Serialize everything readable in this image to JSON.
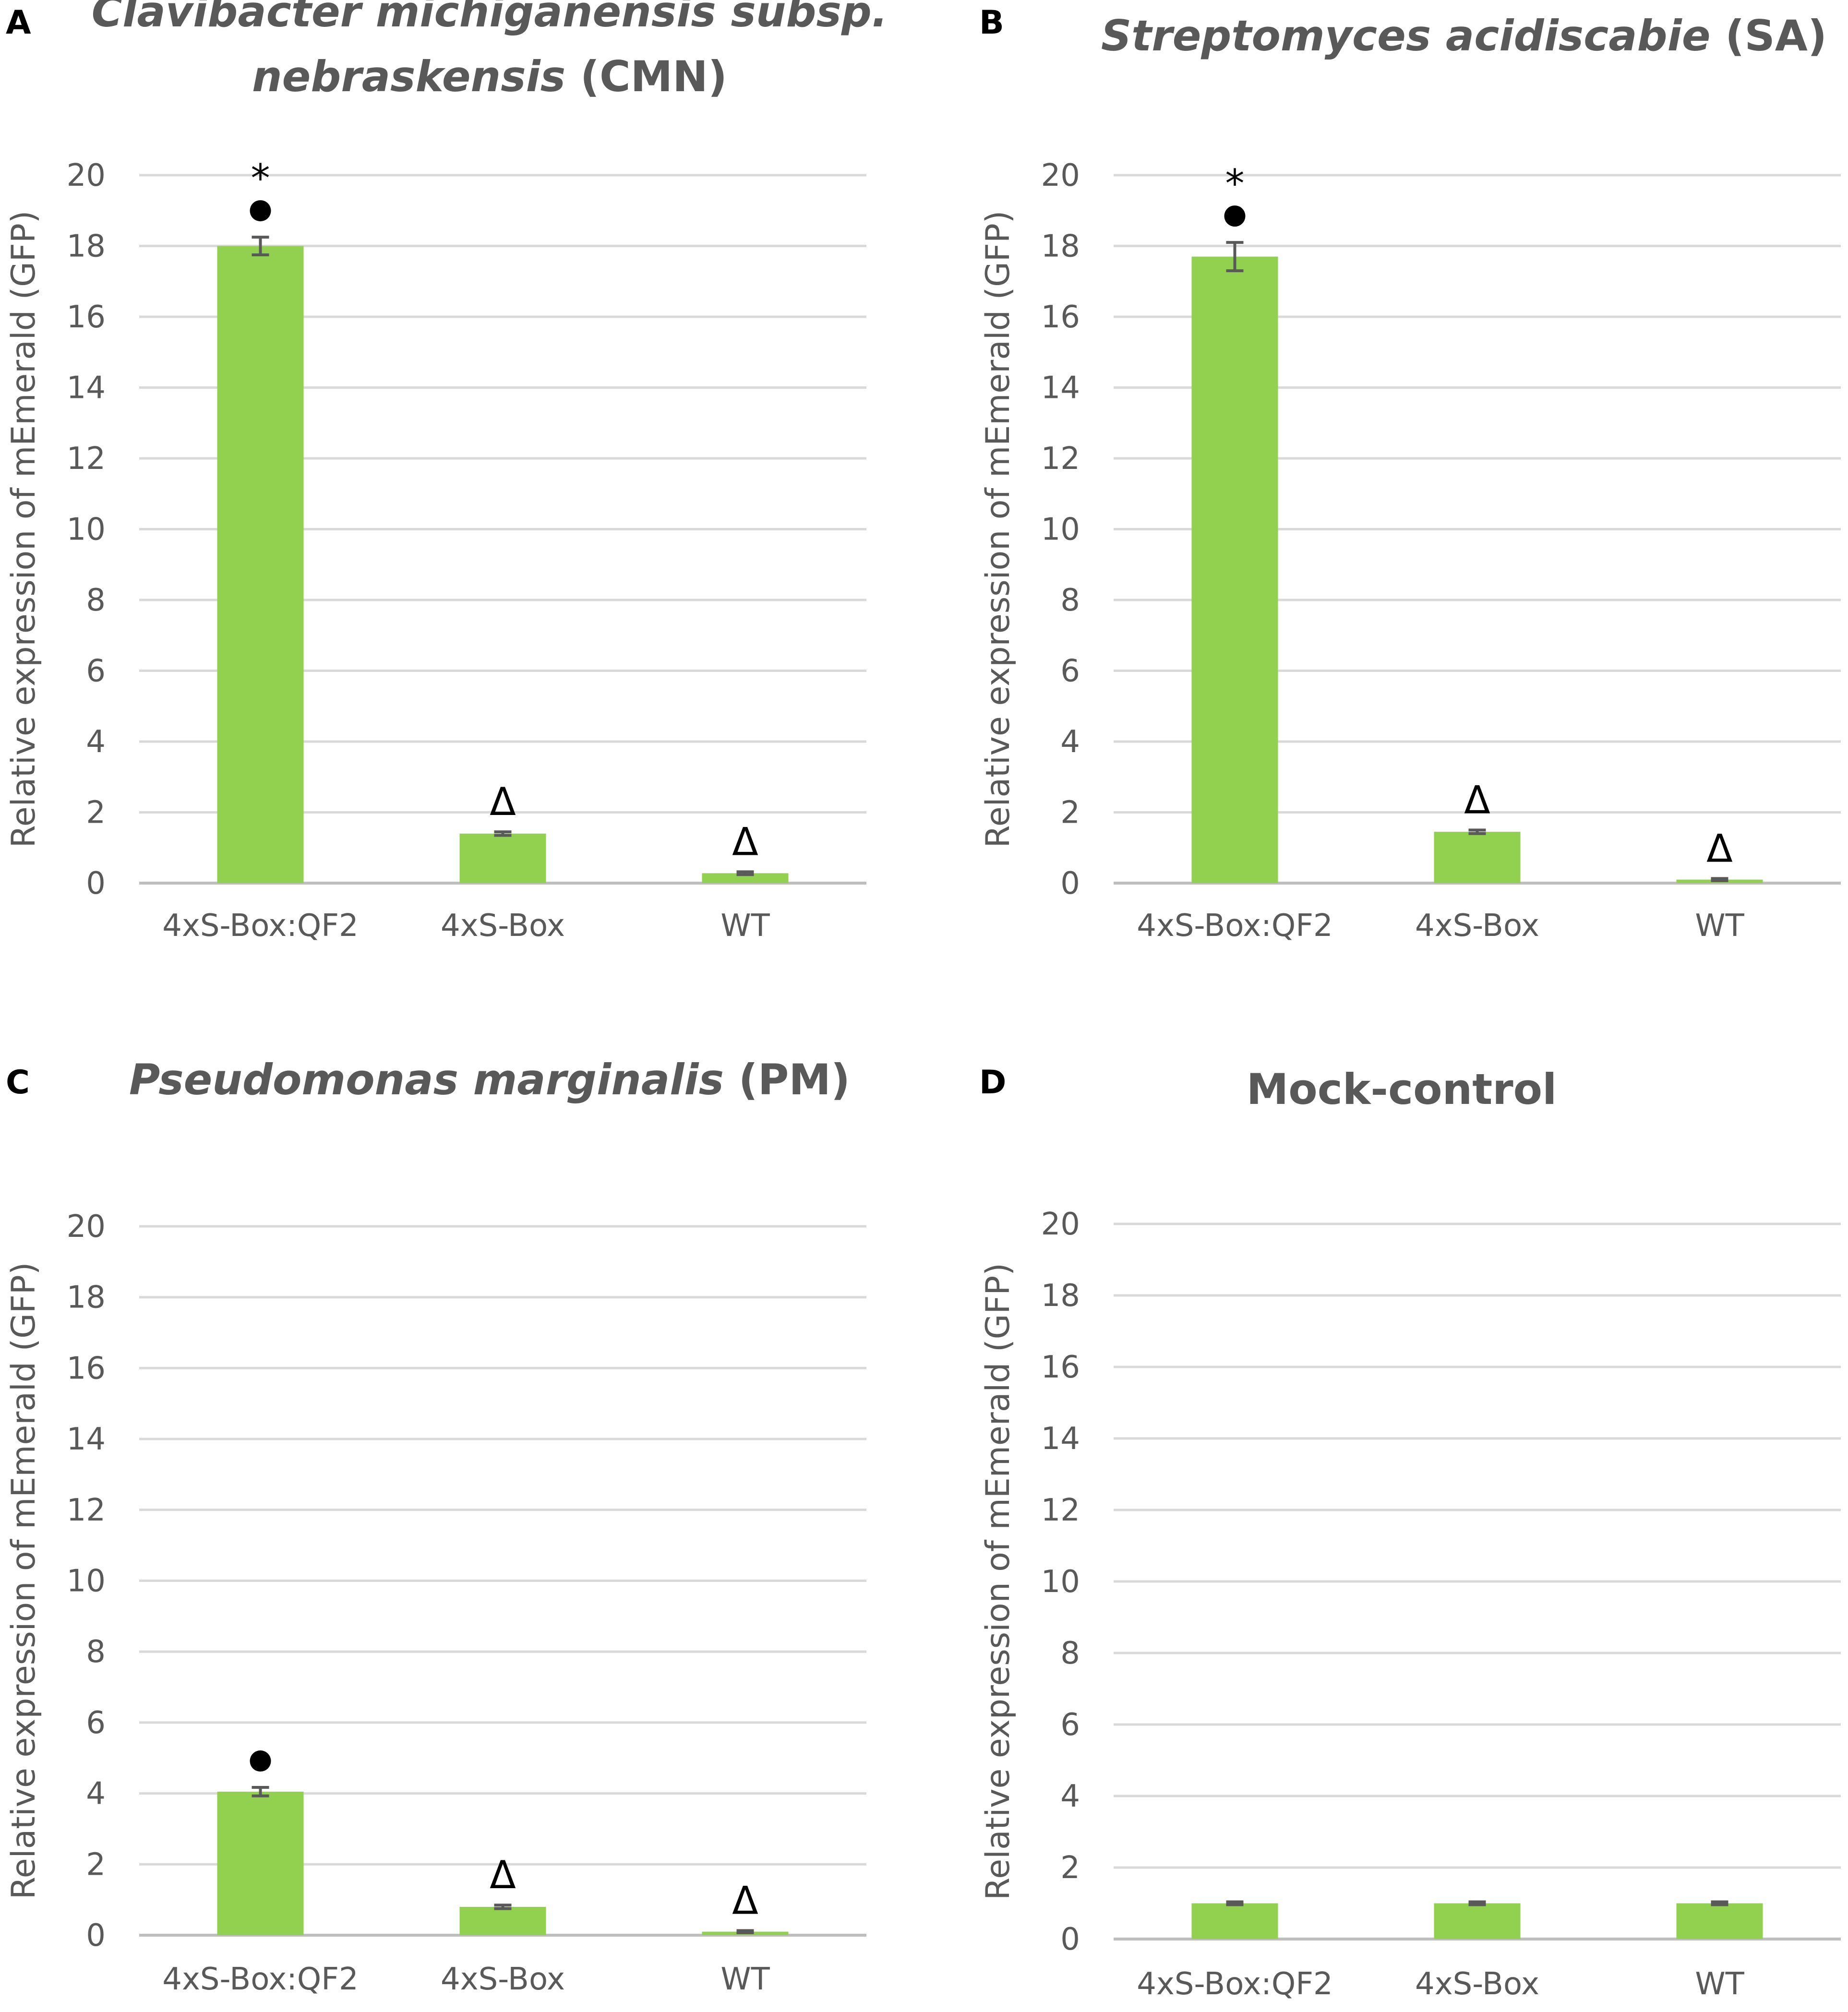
{
  "chart_data": [
    {
      "panel_label": "A",
      "type": "bar",
      "title_italic": [
        "Clavibacter michiganensis subsp.",
        "nebraskensis"
      ],
      "title_suffix": "(CMN)",
      "ylabel": "Relative expression of mEmerald (GFP)",
      "ylim": [
        0,
        20
      ],
      "yticks": [
        "0",
        "2",
        "4",
        "6",
        "8",
        "10",
        "12",
        "14",
        "16",
        "18",
        "20"
      ],
      "categories": [
        "4xS-Box:QF2",
        "4xS-Box",
        "WT"
      ],
      "values": [
        18.0,
        1.4,
        0.28
      ],
      "errors": [
        0.25,
        0.05,
        0.04
      ],
      "annotations": [
        {
          "category": "4xS-Box:QF2",
          "marks": [
            {
              "kind": "dot"
            },
            {
              "kind": "text",
              "text": "*"
            }
          ]
        },
        {
          "category": "4xS-Box",
          "marks": [
            {
              "kind": "text",
              "text": "Δ"
            }
          ]
        },
        {
          "category": "WT",
          "marks": [
            {
              "kind": "text",
              "text": "Δ"
            }
          ]
        }
      ]
    },
    {
      "panel_label": "B",
      "type": "bar",
      "title_italic": [
        "Streptomyces acidiscabie"
      ],
      "title_suffix": "(SA)",
      "ylabel": "Relative expression of mEmerald (GFP)",
      "ylim": [
        0,
        20
      ],
      "yticks": [
        "0",
        "2",
        "4",
        "6",
        "8",
        "10",
        "12",
        "14",
        "16",
        "18",
        "20"
      ],
      "categories": [
        "4xS-Box:QF2",
        "4xS-Box",
        "WT"
      ],
      "values": [
        17.7,
        1.45,
        0.1
      ],
      "errors": [
        0.4,
        0.05,
        0.03
      ],
      "annotations": [
        {
          "category": "4xS-Box:QF2",
          "marks": [
            {
              "kind": "dot"
            },
            {
              "kind": "text",
              "text": "*"
            }
          ]
        },
        {
          "category": "4xS-Box",
          "marks": [
            {
              "kind": "text",
              "text": "Δ"
            }
          ]
        },
        {
          "category": "WT",
          "marks": [
            {
              "kind": "text",
              "text": "Δ"
            }
          ]
        }
      ]
    },
    {
      "panel_label": "C",
      "type": "bar",
      "title_italic": [
        "Pseudomonas marginalis"
      ],
      "title_suffix": "(PM)",
      "ylabel": "Relative expression of mEmerald (GFP)",
      "ylim": [
        0,
        20
      ],
      "yticks": [
        "0",
        "2",
        "4",
        "6",
        "8",
        "10",
        "12",
        "14",
        "16",
        "18",
        "20"
      ],
      "categories": [
        "4xS-Box:QF2",
        "4xS-Box",
        "WT"
      ],
      "values": [
        4.05,
        0.8,
        0.1
      ],
      "errors": [
        0.12,
        0.05,
        0.03
      ],
      "annotations": [
        {
          "category": "4xS-Box:QF2",
          "marks": [
            {
              "kind": "dot"
            }
          ]
        },
        {
          "category": "4xS-Box",
          "marks": [
            {
              "kind": "text",
              "text": "Δ"
            }
          ]
        },
        {
          "category": "WT",
          "marks": [
            {
              "kind": "text",
              "text": "Δ"
            }
          ]
        }
      ]
    },
    {
      "panel_label": "D",
      "type": "bar",
      "title_italic": [],
      "title_suffix": "Mock-control",
      "ylabel": "Relative expression of mEmerald (GFP)",
      "ylim": [
        0,
        20
      ],
      "yticks": [
        "0",
        "2",
        "4",
        "6",
        "8",
        "10",
        "12",
        "14",
        "16",
        "18",
        "20"
      ],
      "categories": [
        "4xS-Box:QF2",
        "4xS-Box",
        "WT"
      ],
      "values": [
        1.0,
        1.0,
        1.0
      ],
      "errors": [
        0.04,
        0.04,
        0.04
      ],
      "annotations": []
    }
  ],
  "colors": {
    "bar": "#92d050",
    "grid": "#d9d9d9",
    "axis": "#bfbfbf",
    "text": "#595959",
    "marker": "#000000",
    "error_bar": "#595959"
  }
}
